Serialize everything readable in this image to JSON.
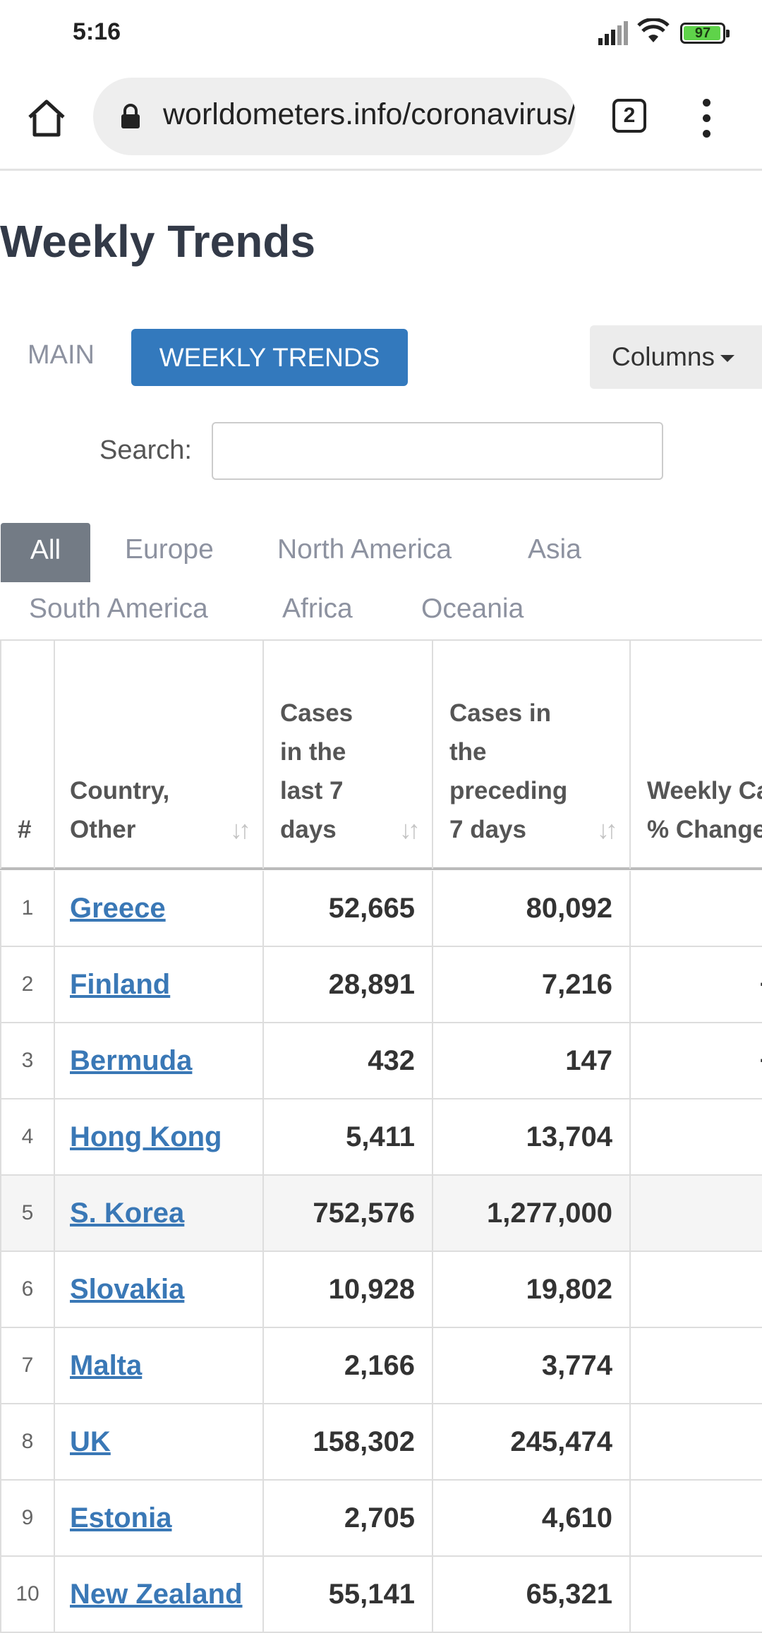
{
  "status_bar": {
    "time": "5:16",
    "battery_level": "97",
    "battery_fraction": 0.97
  },
  "browser": {
    "url": "worldometers.info/coronavirus/weekly-trends/",
    "tab_count": "2"
  },
  "page": {
    "title": "Weekly Trends",
    "tabs": [
      {
        "label": "MAIN",
        "active": false
      },
      {
        "label": "WEEKLY TRENDS",
        "active": true
      }
    ],
    "columns_button": "Columns",
    "search_label": "Search:",
    "search_value": ""
  },
  "regions": [
    "All",
    "Europe",
    "North America",
    "Asia",
    "South America",
    "Africa",
    "Oceania"
  ],
  "table": {
    "headers": {
      "num": "#",
      "country_line1": "Country,",
      "country_line2": "Other",
      "last_lines": [
        "Cases",
        "in the",
        "last 7",
        "days"
      ],
      "prev_lines": [
        "Cases in",
        "the",
        "preceding",
        "7 days"
      ],
      "change_line1": "Weekly Cases",
      "change_line2": "% Change"
    },
    "rows": [
      {
        "num": "1",
        "country": "Greece",
        "last7": "52,665",
        "prev7": "80,092",
        "change": ""
      },
      {
        "num": "2",
        "country": "Finland",
        "last7": "28,891",
        "prev7": "7,216",
        "change": "+"
      },
      {
        "num": "3",
        "country": "Bermuda",
        "last7": "432",
        "prev7": "147",
        "change": "+"
      },
      {
        "num": "4",
        "country": "Hong Kong",
        "last7": "5,411",
        "prev7": "13,704",
        "change": ""
      },
      {
        "num": "5",
        "country": "S. Korea",
        "last7": "752,576",
        "prev7": "1,277,000",
        "change": ""
      },
      {
        "num": "6",
        "country": "Slovakia",
        "last7": "10,928",
        "prev7": "19,802",
        "change": ""
      },
      {
        "num": "7",
        "country": "Malta",
        "last7": "2,166",
        "prev7": "3,774",
        "change": ""
      },
      {
        "num": "8",
        "country": "UK",
        "last7": "158,302",
        "prev7": "245,474",
        "change": ""
      },
      {
        "num": "9",
        "country": "Estonia",
        "last7": "2,705",
        "prev7": "4,610",
        "change": ""
      },
      {
        "num": "10",
        "country": "New Zealand",
        "last7": "55,141",
        "prev7": "65,321",
        "change": ""
      }
    ]
  }
}
